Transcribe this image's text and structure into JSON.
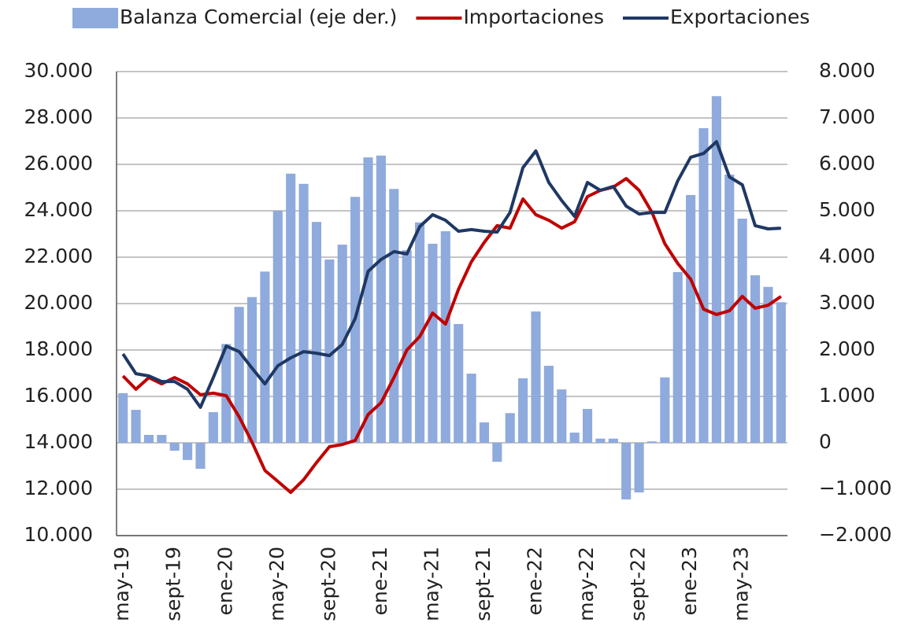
{
  "chart_data": {
    "type": "bar-line",
    "categories": [
      "may-19",
      null,
      null,
      null,
      "sept-19",
      null,
      null,
      null,
      "ene-20",
      null,
      null,
      null,
      "may-20",
      null,
      null,
      null,
      "sept-20",
      null,
      null,
      null,
      "ene-21",
      null,
      null,
      null,
      "may-21",
      null,
      null,
      null,
      "sept-21",
      null,
      null,
      null,
      "ene-22",
      null,
      null,
      null,
      "may-22",
      null,
      null,
      null,
      "sept-22",
      null,
      null,
      null,
      "ene-23",
      null,
      null,
      null,
      "may-23",
      null,
      null,
      null
    ],
    "series": [
      {
        "name": "Balanza Comercial (eje der.)",
        "type": "bar",
        "axis": "y2",
        "color": "#8faadc",
        "values": [
          1070,
          710,
          170,
          170,
          -170,
          -370,
          -560,
          660,
          2130,
          2930,
          3140,
          3690,
          5000,
          5800,
          5580,
          4760,
          3950,
          4270,
          5300,
          6150,
          6190,
          5470,
          4150,
          4750,
          4290,
          4560,
          2560,
          1490,
          440,
          -410,
          640,
          1390,
          2830,
          1660,
          1150,
          220,
          730,
          90,
          90,
          -1220,
          -1070,
          30,
          1410,
          3680,
          5340,
          6780,
          7470,
          5780,
          4830,
          3610,
          3360,
          3030
        ]
      },
      {
        "name": "Importaciones",
        "type": "line",
        "color": "#c00000",
        "values": [
          16880,
          16310,
          16810,
          16540,
          16810,
          16540,
          16070,
          16140,
          16030,
          15120,
          14030,
          12810,
          12340,
          11860,
          12410,
          13150,
          13830,
          13930,
          14100,
          15220,
          15730,
          16810,
          18000,
          18580,
          19590,
          19120,
          20610,
          21800,
          22640,
          23360,
          23250,
          24510,
          23830,
          23590,
          23250,
          23530,
          24610,
          24880,
          25020,
          25390,
          24880,
          23930,
          22580,
          21730,
          21050,
          19760,
          19530,
          19690,
          20310,
          19800,
          19930,
          20310
        ]
      },
      {
        "name": "Exportaciones",
        "type": "line",
        "color": "#1f3864",
        "values": [
          17830,
          16980,
          16880,
          16640,
          16640,
          16310,
          15530,
          16810,
          18170,
          17930,
          17220,
          16540,
          17320,
          17660,
          17930,
          17860,
          17760,
          18240,
          19360,
          21390,
          21900,
          22240,
          22140,
          23320,
          23830,
          23590,
          23120,
          23190,
          23120,
          23080,
          23930,
          25860,
          26580,
          25220,
          24440,
          23760,
          25220,
          24880,
          25050,
          24200,
          23860,
          23930,
          23930,
          25290,
          26310,
          26470,
          26980,
          25460,
          25120,
          23360,
          23220,
          23250
        ]
      }
    ],
    "ylim": [
      10000,
      30000
    ],
    "yticks": [
      {
        "value": 10000,
        "label": "10.000"
      },
      {
        "value": 12000,
        "label": "12.000"
      },
      {
        "value": 14000,
        "label": "14.000"
      },
      {
        "value": 16000,
        "label": "16.000"
      },
      {
        "value": 18000,
        "label": "18.000"
      },
      {
        "value": 20000,
        "label": "20.000"
      },
      {
        "value": 22000,
        "label": "22.000"
      },
      {
        "value": 24000,
        "label": "24.000"
      },
      {
        "value": 26000,
        "label": "26.000"
      },
      {
        "value": 28000,
        "label": "28.000"
      },
      {
        "value": 30000,
        "label": "30.000"
      }
    ],
    "y2lim": [
      -2000,
      8000
    ],
    "y2ticks": [
      {
        "value": -2000,
        "label": "−2.000"
      },
      {
        "value": -1000,
        "label": "−1.000"
      },
      0,
      {
        "value": 1000,
        "label": "1.000"
      },
      {
        "value": 2000,
        "label": "2.000"
      },
      {
        "value": 3000,
        "label": "3.000"
      },
      {
        "value": 4000,
        "label": "4.000"
      },
      {
        "value": 5000,
        "label": "5.000"
      },
      {
        "value": 6000,
        "label": "6.000"
      },
      {
        "value": 7000,
        "label": "7.000"
      },
      {
        "value": 8000,
        "label": "8.000"
      }
    ],
    "grid": true,
    "legend": "top"
  }
}
